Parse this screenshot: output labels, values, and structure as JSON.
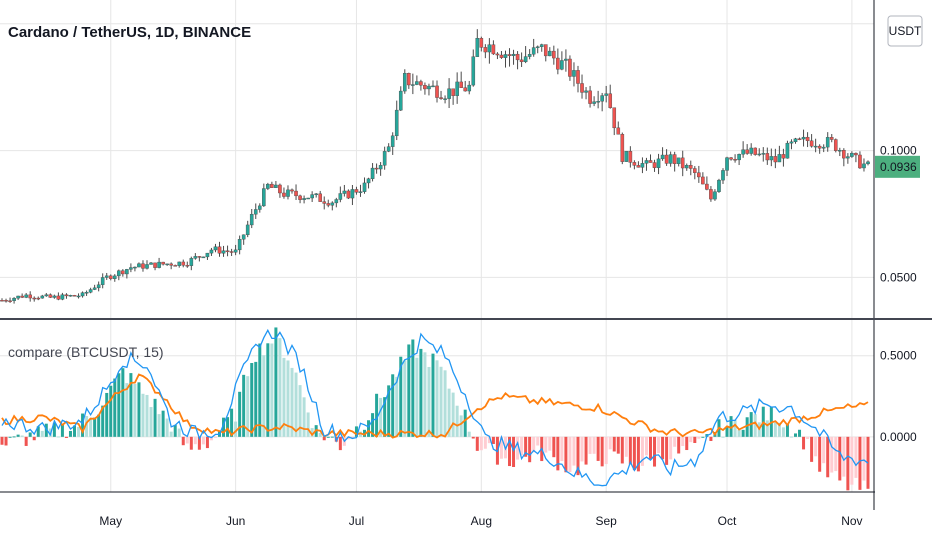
{
  "chart_data": {
    "type": "candlestick",
    "symbol_title": "Cardano / TetherUS, 1D, BINANCE",
    "currency_label": "USDT",
    "last_price": "0.0936",
    "price_axis": {
      "ticks": [
        "0.1000",
        "0.0500"
      ],
      "range": [
        0.034,
        0.157
      ]
    },
    "time_axis": {
      "labels": [
        "May",
        "Jun",
        "Jul",
        "Aug",
        "Sep",
        "Oct",
        "Nov"
      ]
    },
    "price_path_days": [
      [
        0,
        0.041
      ],
      [
        6,
        0.043
      ],
      [
        12,
        0.042
      ],
      [
        20,
        0.043
      ],
      [
        26,
        0.05
      ],
      [
        32,
        0.054
      ],
      [
        38,
        0.055
      ],
      [
        46,
        0.056
      ],
      [
        52,
        0.061
      ],
      [
        58,
        0.06
      ],
      [
        62,
        0.074
      ],
      [
        66,
        0.086
      ],
      [
        70,
        0.083
      ],
      [
        76,
        0.082
      ],
      [
        82,
        0.08
      ],
      [
        90,
        0.086
      ],
      [
        96,
        0.101
      ],
      [
        100,
        0.128
      ],
      [
        104,
        0.126
      ],
      [
        110,
        0.123
      ],
      [
        116,
        0.125
      ],
      [
        118,
        0.143
      ],
      [
        122,
        0.141
      ],
      [
        128,
        0.136
      ],
      [
        134,
        0.14
      ],
      [
        140,
        0.133
      ],
      [
        146,
        0.121
      ],
      [
        150,
        0.124
      ],
      [
        154,
        0.098
      ],
      [
        160,
        0.094
      ],
      [
        166,
        0.097
      ],
      [
        172,
        0.091
      ],
      [
        176,
        0.081
      ],
      [
        180,
        0.098
      ],
      [
        186,
        0.099
      ],
      [
        192,
        0.096
      ],
      [
        196,
        0.102
      ],
      [
        200,
        0.104
      ],
      [
        206,
        0.103
      ],
      [
        212,
        0.096
      ],
      [
        215,
        0.0936
      ]
    ],
    "indicator": {
      "title": "compare (BTCUSDT, 15)",
      "ticks": [
        "0.5000",
        "0.0000"
      ],
      "range": [
        -0.34,
        0.72
      ],
      "histogram_days": [
        [
          0,
          -0.05
        ],
        [
          10,
          0.02
        ],
        [
          18,
          0.06
        ],
        [
          24,
          0.18
        ],
        [
          30,
          0.4
        ],
        [
          36,
          0.25
        ],
        [
          42,
          0.08
        ],
        [
          46,
          -0.08
        ],
        [
          52,
          -0.02
        ],
        [
          58,
          0.15
        ],
        [
          62,
          0.5
        ],
        [
          68,
          0.62
        ],
        [
          72,
          0.45
        ],
        [
          78,
          0.04
        ],
        [
          84,
          -0.05
        ],
        [
          90,
          0.1
        ],
        [
          96,
          0.32
        ],
        [
          102,
          0.55
        ],
        [
          108,
          0.45
        ],
        [
          114,
          0.18
        ],
        [
          118,
          -0.05
        ],
        [
          126,
          -0.15
        ],
        [
          134,
          -0.1
        ],
        [
          142,
          -0.2
        ],
        [
          150,
          -0.12
        ],
        [
          158,
          -0.18
        ],
        [
          164,
          -0.12
        ],
        [
          172,
          -0.08
        ],
        [
          178,
          0.05
        ],
        [
          186,
          0.12
        ],
        [
          192,
          0.14
        ],
        [
          198,
          0.02
        ],
        [
          204,
          -0.22
        ],
        [
          210,
          -0.3
        ],
        [
          215,
          -0.33
        ]
      ],
      "blue_line_days": [
        [
          0,
          0.1
        ],
        [
          10,
          0.05
        ],
        [
          20,
          0.1
        ],
        [
          26,
          0.3
        ],
        [
          30,
          0.48
        ],
        [
          36,
          0.45
        ],
        [
          42,
          0.1
        ],
        [
          48,
          0.02
        ],
        [
          54,
          0.05
        ],
        [
          60,
          0.4
        ],
        [
          64,
          0.6
        ],
        [
          68,
          0.65
        ],
        [
          74,
          0.45
        ],
        [
          80,
          0.05
        ],
        [
          86,
          0.0
        ],
        [
          92,
          0.08
        ],
        [
          98,
          0.38
        ],
        [
          104,
          0.6
        ],
        [
          110,
          0.5
        ],
        [
          116,
          0.22
        ],
        [
          120,
          -0.02
        ],
        [
          128,
          -0.08
        ],
        [
          136,
          -0.12
        ],
        [
          142,
          -0.22
        ],
        [
          148,
          -0.28
        ],
        [
          154,
          -0.22
        ],
        [
          160,
          -0.12
        ],
        [
          166,
          -0.2
        ],
        [
          172,
          -0.14
        ],
        [
          178,
          0.12
        ],
        [
          184,
          0.15
        ],
        [
          190,
          0.2
        ],
        [
          196,
          0.18
        ],
        [
          202,
          0.05
        ],
        [
          208,
          -0.12
        ],
        [
          215,
          -0.15
        ]
      ],
      "orange_line_days": [
        [
          0,
          0.1
        ],
        [
          10,
          0.12
        ],
        [
          20,
          0.05
        ],
        [
          28,
          0.25
        ],
        [
          34,
          0.38
        ],
        [
          40,
          0.25
        ],
        [
          46,
          0.08
        ],
        [
          54,
          0.02
        ],
        [
          62,
          0.05
        ],
        [
          70,
          0.06
        ],
        [
          80,
          0.02
        ],
        [
          90,
          0.02
        ],
        [
          100,
          0.02
        ],
        [
          110,
          0.02
        ],
        [
          118,
          0.18
        ],
        [
          124,
          0.25
        ],
        [
          132,
          0.22
        ],
        [
          140,
          0.2
        ],
        [
          148,
          0.18
        ],
        [
          156,
          0.1
        ],
        [
          164,
          0.03
        ],
        [
          172,
          0.02
        ],
        [
          180,
          0.05
        ],
        [
          188,
          0.07
        ],
        [
          196,
          0.1
        ],
        [
          204,
          0.15
        ],
        [
          210,
          0.18
        ],
        [
          215,
          0.19
        ]
      ]
    }
  },
  "colors": {
    "up": "#26a69a",
    "down": "#ef5350",
    "hist_up": "#26a69a",
    "hist_up_light": "#b2dfdb",
    "hist_down": "#ef5350",
    "hist_down_light": "#ffcdd2",
    "blue_line": "#2196f3",
    "orange_line": "#ff7f0e",
    "last_price_bg": "#4caf7f",
    "grid": "#e6e6e6",
    "axis": "#131722"
  }
}
